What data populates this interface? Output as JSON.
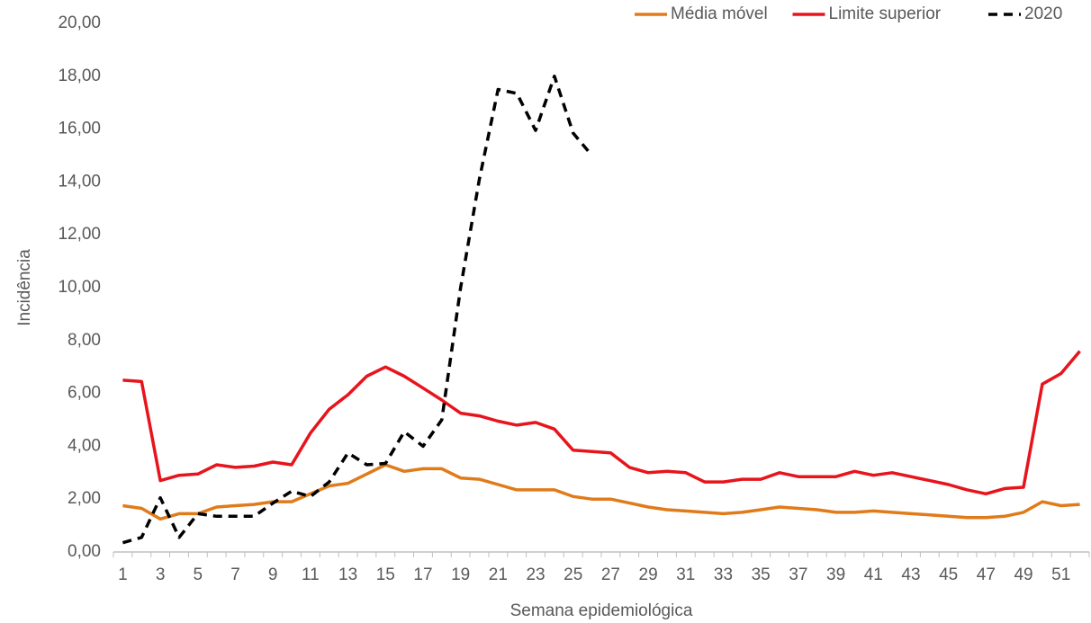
{
  "chart_data": {
    "type": "line",
    "x_label": "Semana epidemiológica",
    "y_label": "Incidência",
    "categories": [
      1,
      null,
      3,
      null,
      5,
      null,
      7,
      null,
      9,
      null,
      11,
      null,
      13,
      null,
      15,
      null,
      17,
      null,
      19,
      null,
      21,
      null,
      23,
      null,
      25,
      null,
      27,
      null,
      29,
      null,
      31,
      null,
      33,
      null,
      35,
      null,
      37,
      null,
      39,
      null,
      41,
      null,
      43,
      null,
      45,
      null,
      47,
      null,
      49,
      null,
      51,
      null
    ],
    "series": [
      {
        "name": "Média móvel",
        "color": "#e07b1a",
        "style": "solid",
        "values": [
          1.75,
          1.65,
          1.25,
          1.45,
          1.45,
          1.7,
          1.75,
          1.8,
          1.9,
          1.9,
          2.2,
          2.5,
          2.6,
          2.95,
          3.3,
          3.05,
          3.15,
          3.15,
          2.8,
          2.75,
          2.55,
          2.35,
          2.35,
          2.35,
          2.1,
          2.0,
          2.0,
          1.85,
          1.7,
          1.6,
          1.55,
          1.5,
          1.45,
          1.5,
          1.6,
          1.7,
          1.65,
          1.6,
          1.5,
          1.5,
          1.55,
          1.5,
          1.45,
          1.4,
          1.35,
          1.3,
          1.3,
          1.35,
          1.5,
          1.9,
          1.75,
          1.8
        ]
      },
      {
        "name": "Limite superior",
        "color": "#e8141c",
        "style": "solid",
        "values": [
          6.5,
          6.45,
          2.7,
          2.9,
          2.95,
          3.3,
          3.2,
          3.25,
          3.4,
          3.3,
          4.5,
          5.4,
          5.95,
          6.65,
          7.0,
          6.65,
          6.2,
          5.75,
          5.25,
          5.15,
          4.95,
          4.8,
          4.9,
          4.65,
          3.85,
          3.8,
          3.75,
          3.2,
          3.0,
          3.05,
          3.0,
          2.65,
          2.65,
          2.75,
          2.75,
          3.0,
          2.85,
          2.85,
          2.85,
          3.05,
          2.9,
          3.0,
          2.85,
          2.7,
          2.55,
          2.35,
          2.2,
          2.4,
          2.45,
          6.35,
          6.75,
          7.6
        ]
      },
      {
        "name": "2020",
        "color": "#000000",
        "style": "dashed",
        "values": [
          0.35,
          0.55,
          2.05,
          0.55,
          1.45,
          1.35,
          1.35,
          1.35,
          1.85,
          2.3,
          2.1,
          2.65,
          3.75,
          3.3,
          3.35,
          4.55,
          4.0,
          5.0,
          10.0,
          14.1,
          17.5,
          17.35,
          15.95,
          18.0,
          15.85,
          15.0,
          null,
          null,
          null,
          null,
          null,
          null,
          null,
          null,
          null,
          null,
          null,
          null,
          null,
          null,
          null,
          null,
          null,
          null,
          null,
          null,
          null,
          null,
          null,
          null,
          null,
          null
        ]
      }
    ],
    "ylim": [
      0,
      20
    ],
    "yticks": [
      {
        "value": 0,
        "label": "0,00"
      },
      {
        "value": 2,
        "label": "2,00"
      },
      {
        "value": 4,
        "label": "4,00"
      },
      {
        "value": 6,
        "label": "6,00"
      },
      {
        "value": 8,
        "label": "8,00"
      },
      {
        "value": 10,
        "label": "10,00"
      },
      {
        "value": 12,
        "label": "12,00"
      },
      {
        "value": 14,
        "label": "14,00"
      },
      {
        "value": 16,
        "label": "16,00"
      },
      {
        "value": 18,
        "label": "18,00"
      },
      {
        "value": 20,
        "label": "20,00"
      }
    ],
    "grid": false,
    "legend": "top-right"
  }
}
